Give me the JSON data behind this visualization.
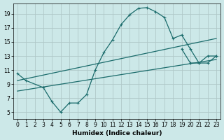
{
  "xlabel": "Humidex (Indice chaleur)",
  "bg_color": "#cce8e8",
  "grid_color": "#b0c8c8",
  "line_color": "#1a6b6b",
  "xlim": [
    -0.5,
    23.5
  ],
  "ylim": [
    4,
    20.5
  ],
  "xticks": [
    0,
    1,
    2,
    3,
    4,
    5,
    6,
    7,
    8,
    9,
    10,
    11,
    12,
    13,
    14,
    15,
    16,
    17,
    18,
    19,
    20,
    21,
    22,
    23
  ],
  "yticks": [
    5,
    7,
    9,
    11,
    13,
    15,
    17,
    19
  ],
  "curve_x": [
    0,
    1,
    3,
    4,
    5,
    6,
    7,
    8,
    9,
    10,
    11,
    12,
    13,
    14,
    15,
    16,
    17,
    18,
    19,
    20,
    21,
    22,
    23
  ],
  "curve_y": [
    10.5,
    9.5,
    8.5,
    6.5,
    5.0,
    6.3,
    6.3,
    7.5,
    11.0,
    13.5,
    15.3,
    17.5,
    18.9,
    19.8,
    19.9,
    19.3,
    18.5,
    15.5,
    16.0,
    14.0,
    12.0,
    12.0,
    13.0
  ],
  "upper_line_x": [
    0,
    23
  ],
  "upper_line_y": [
    9.5,
    15.5
  ],
  "lower_line_x": [
    0,
    23
  ],
  "lower_line_y": [
    8.0,
    12.5
  ],
  "zigzag_x": [
    19,
    20,
    21,
    22,
    23
  ],
  "zigzag_y": [
    14.0,
    12.0,
    12.0,
    13.0,
    13.0
  ]
}
